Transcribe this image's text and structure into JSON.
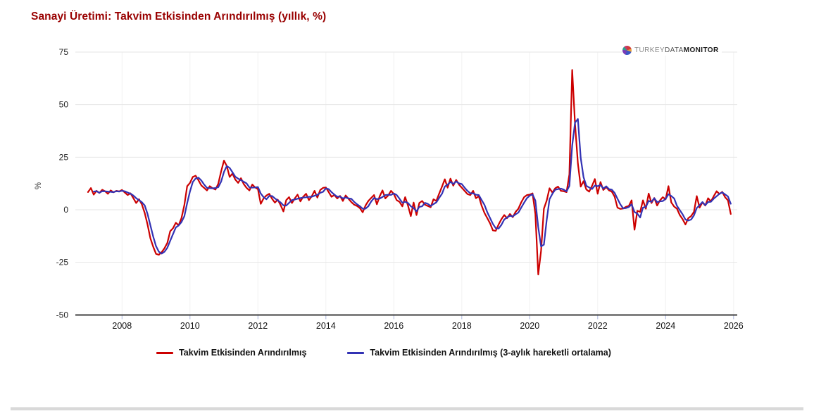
{
  "title": "Sanayi Üretimi: Takvim Etkisinden Arındırılmış (yıllık, %)",
  "logo": {
    "icon": "pie-chart-logo-icon",
    "text_parts": {
      "part1": "TURKEY",
      "part2": "DATA",
      "part3": "MONITOR"
    }
  },
  "chart_data": {
    "type": "line",
    "title": "Sanayi Üretimi: Takvim Etkisinden Arındırılmış (yıllık, %)",
    "xlabel": "",
    "ylabel": "%",
    "x_unit": "month",
    "x_start": "2007-01",
    "x_end": "2025-12",
    "x_tick_labels": [
      "2008",
      "2010",
      "2012",
      "2014",
      "2016",
      "2018",
      "2020",
      "2022",
      "2024",
      "2026"
    ],
    "x_tick_month_index": [
      12,
      36,
      60,
      84,
      108,
      132,
      156,
      180,
      204,
      228
    ],
    "y_ticks": [
      75,
      50,
      25,
      0,
      -25,
      -50
    ],
    "ylim": [
      -50,
      80
    ],
    "grid": "horizontal-light",
    "legend_position": "bottom",
    "series": [
      {
        "name": "Takvim Etkisinden Arındırılmış",
        "color": "#cc0000",
        "values": [
          8.4,
          10.3,
          7.2,
          9.0,
          8.0,
          9.5,
          8.8,
          7.6,
          9.2,
          8.3,
          9.0,
          8.7,
          9.4,
          8.2,
          7.0,
          7.8,
          5.5,
          3.2,
          5.0,
          2.6,
          -1.5,
          -7.0,
          -13.5,
          -17.5,
          -21.0,
          -21.4,
          -20.2,
          -18.3,
          -15.8,
          -10.2,
          -8.8,
          -6.2,
          -7.4,
          -4.0,
          2.2,
          11.2,
          12.8,
          15.6,
          16.2,
          14.0,
          11.6,
          10.4,
          9.2,
          11.2,
          10.2,
          9.6,
          12.4,
          18.2,
          23.4,
          20.8,
          15.6,
          17.2,
          14.4,
          12.8,
          15.0,
          12.2,
          10.4,
          9.2,
          12.0,
          10.6,
          9.8,
          2.8,
          5.4,
          6.8,
          7.6,
          5.2,
          3.4,
          4.8,
          2.2,
          -0.8,
          4.6,
          6.0,
          3.2,
          5.4,
          7.2,
          4.0,
          6.2,
          7.6,
          4.6,
          6.4,
          9.0,
          5.8,
          9.4,
          10.4,
          10.6,
          8.4,
          6.2,
          7.0,
          5.4,
          6.6,
          4.2,
          6.8,
          5.2,
          3.6,
          2.4,
          1.8,
          0.8,
          -1.2,
          2.0,
          4.2,
          5.6,
          7.0,
          2.6,
          6.4,
          9.2,
          5.4,
          6.8,
          9.0,
          7.5,
          4.6,
          3.8,
          1.6,
          6.0,
          2.0,
          -3.0,
          3.4,
          -2.5,
          3.2,
          4.2,
          2.4,
          1.8,
          1.2,
          5.0,
          4.2,
          7.6,
          11.0,
          14.5,
          10.5,
          14.8,
          11.5,
          14.2,
          12.0,
          10.5,
          9.0,
          7.5,
          7.0,
          9.0,
          5.5,
          6.5,
          2.0,
          -1.5,
          -4.0,
          -6.5,
          -9.8,
          -10.0,
          -7.0,
          -4.5,
          -2.5,
          -4.0,
          -2.0,
          -3.5,
          -1.0,
          0.5,
          3.5,
          6.0,
          7.0,
          7.2,
          7.8,
          -2.0,
          -30.8,
          -19.5,
          0.5,
          4.4,
          10.2,
          8.2,
          10.2,
          11.0,
          9.0,
          8.8,
          8.4,
          16.8,
          66.5,
          41.0,
          22.0,
          11.0,
          13.6,
          9.6,
          8.6,
          11.4,
          14.6,
          7.6,
          13.2,
          9.4,
          10.8,
          9.2,
          8.6,
          6.2,
          1.0,
          0.4,
          0.6,
          1.4,
          1.8,
          4.5,
          -9.5,
          -0.5,
          -1.0,
          4.5,
          0.5,
          7.7,
          3.2,
          5.6,
          2.0,
          4.5,
          6.0,
          5.0,
          11.2,
          3.5,
          1.5,
          0.5,
          -2.5,
          -4.5,
          -7.0,
          -4.0,
          -3.0,
          -1.0,
          6.5,
          1.0,
          3.5,
          2.0,
          5.5,
          4.0,
          6.5,
          8.8,
          7.5,
          8.5,
          6.0,
          4.5,
          -2.0
        ]
      },
      {
        "name": "Takvim Etkisinden Arındırılmış (3-aylık hareketli ortalama)",
        "color": "#3232b4",
        "derived": "3-month trailing moving average of series 0 (3-aylık hareketli ortalama)"
      }
    ]
  },
  "legend": {
    "item1": "Takvim Etkisinden Arındırılmış",
    "item2": "Takvim Etkisinden Arındırılmış (3-aylık hareketli ortalama)"
  }
}
